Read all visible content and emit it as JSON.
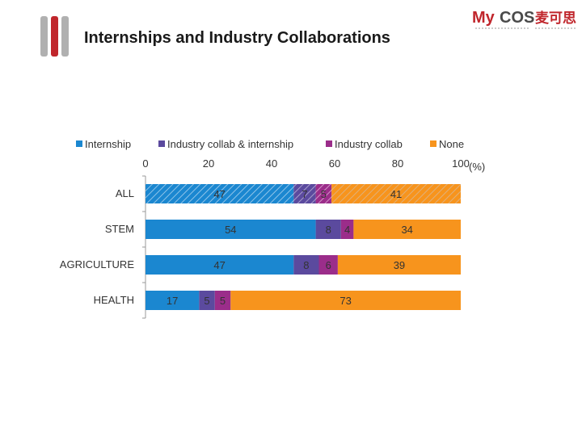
{
  "header": {
    "title": "Internships and Industry Collaborations"
  },
  "logo": {
    "brand_text": "MyCOS 麦可思"
  },
  "chart_data": {
    "type": "bar",
    "orientation": "horizontal",
    "stacked": true,
    "title": "Internships and Industry Collaborations",
    "xlabel": "",
    "ylabel": "",
    "unit_label": "(%)",
    "xlim": [
      0,
      100
    ],
    "xticks": [
      "0",
      "20",
      "40",
      "60",
      "80",
      "100"
    ],
    "grid": false,
    "legend_position": "top",
    "categories": [
      "ALL",
      "STEM",
      "AGRICULTURE",
      "HEALTH"
    ],
    "series": [
      {
        "name": "Internship",
        "color": "#1b87d0",
        "values": [
          47,
          54,
          47,
          17
        ]
      },
      {
        "name": "Industry collab & internship",
        "color": "#5b4a9e",
        "values": [
          7,
          8,
          8,
          5
        ]
      },
      {
        "name": "Industry collab",
        "color": "#9b2d8a",
        "values": [
          5,
          4,
          6,
          5
        ]
      },
      {
        "name": "None",
        "color": "#f7941d",
        "values": [
          41,
          34,
          39,
          73
        ]
      }
    ],
    "hatched_categories": [
      "ALL"
    ]
  }
}
